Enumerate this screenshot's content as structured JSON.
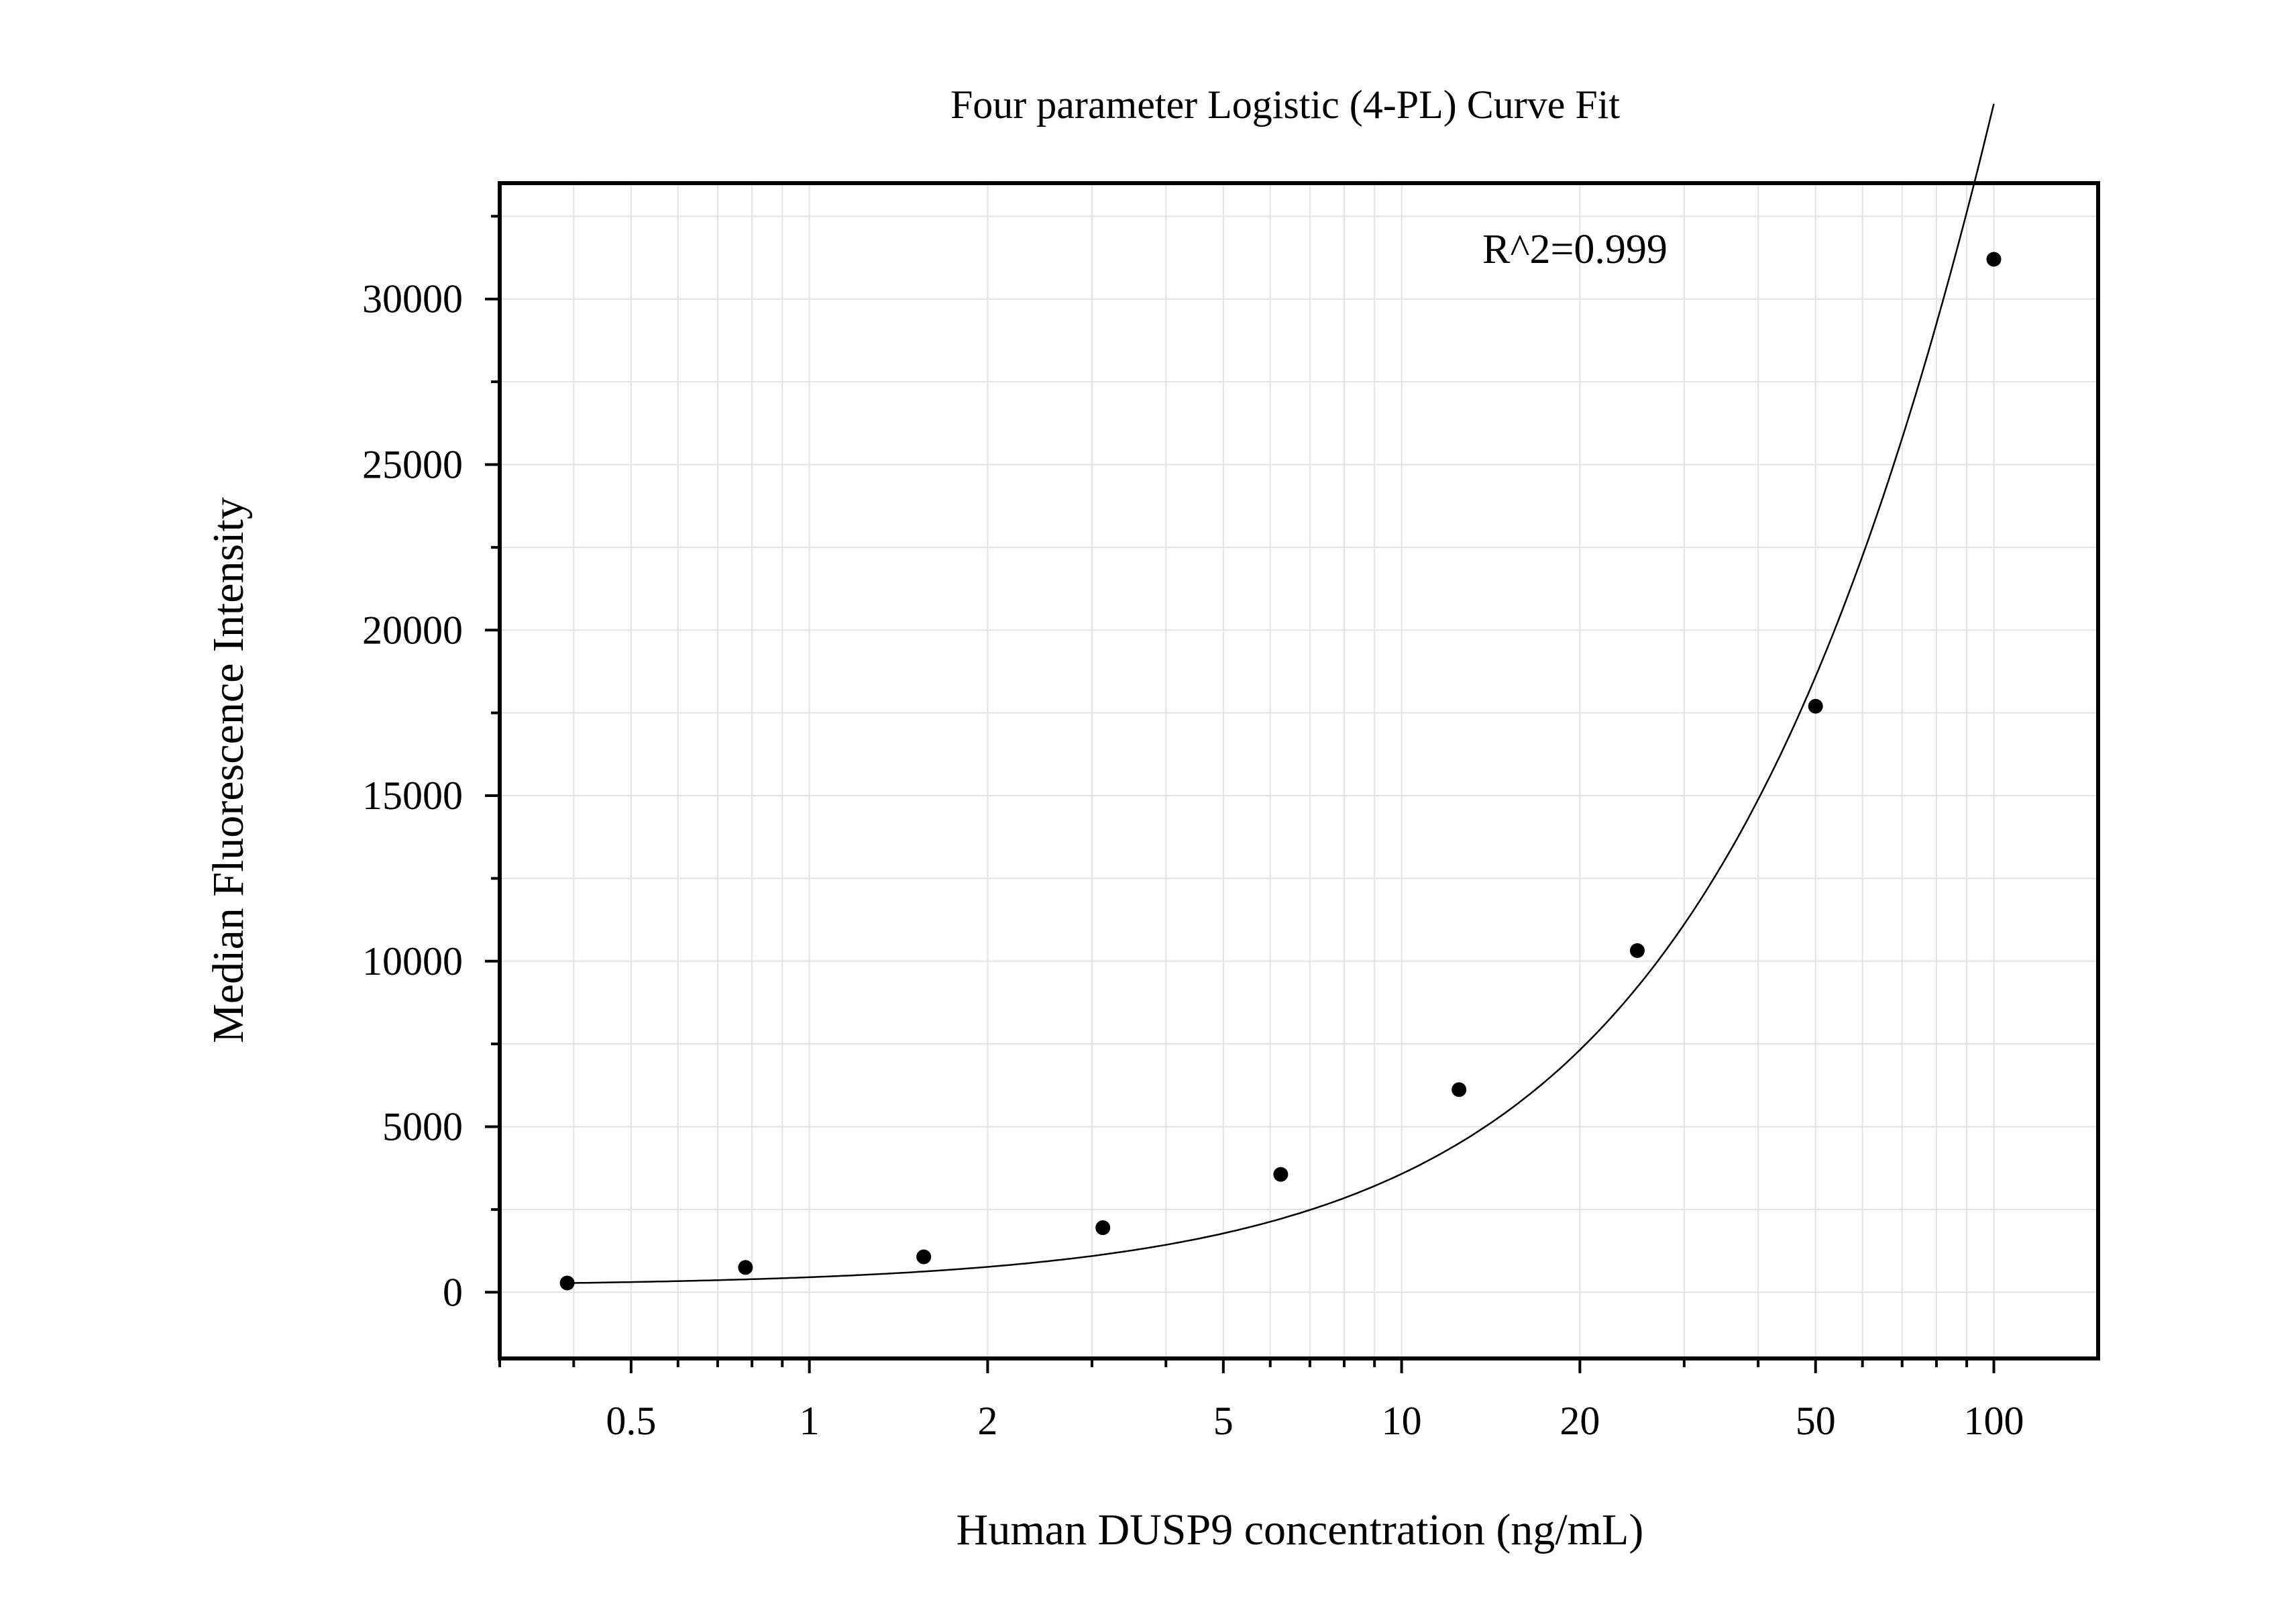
{
  "chart_data": {
    "type": "scatter",
    "title": "Four parameter Logistic (4-PL) Curve Fit",
    "xlabel": "Human DUSP9 concentration (ng/mL)",
    "ylabel": "Median Fluorescence Intensity",
    "x_scale": "log",
    "xlim": [
      0.3,
      150
    ],
    "ylim": [
      -2000,
      33500
    ],
    "x_ticks": [
      0.5,
      1,
      2,
      5,
      10,
      20,
      50,
      100
    ],
    "x_tick_labels": [
      "0.5",
      "1",
      "2",
      "5",
      "10",
      "20",
      "50",
      "100"
    ],
    "y_ticks": [
      0,
      5000,
      10000,
      15000,
      20000,
      25000,
      30000
    ],
    "y_tick_labels": [
      "0",
      "5000",
      "10000",
      "15000",
      "20000",
      "25000",
      "30000"
    ],
    "grid": true,
    "annotation": "R^2=0.999",
    "series": [
      {
        "points": [
          {
            "x": 0.39,
            "y": 280
          },
          {
            "x": 0.78,
            "y": 750
          },
          {
            "x": 1.56,
            "y": 1070
          },
          {
            "x": 3.13,
            "y": 1950
          },
          {
            "x": 6.25,
            "y": 3560
          },
          {
            "x": 12.5,
            "y": 6120
          },
          {
            "x": 25,
            "y": 10320
          },
          {
            "x": 50,
            "y": 17700
          },
          {
            "x": 100,
            "y": 31200
          }
        ]
      }
    ],
    "fit_curve": {
      "model": "4PL",
      "A": 180,
      "B": 1.1,
      "C": 400,
      "D": 200000
    },
    "colors": {
      "marker": "#000000",
      "curve": "#000000",
      "grid": "#e3e3e3",
      "frame": "#000000"
    }
  }
}
